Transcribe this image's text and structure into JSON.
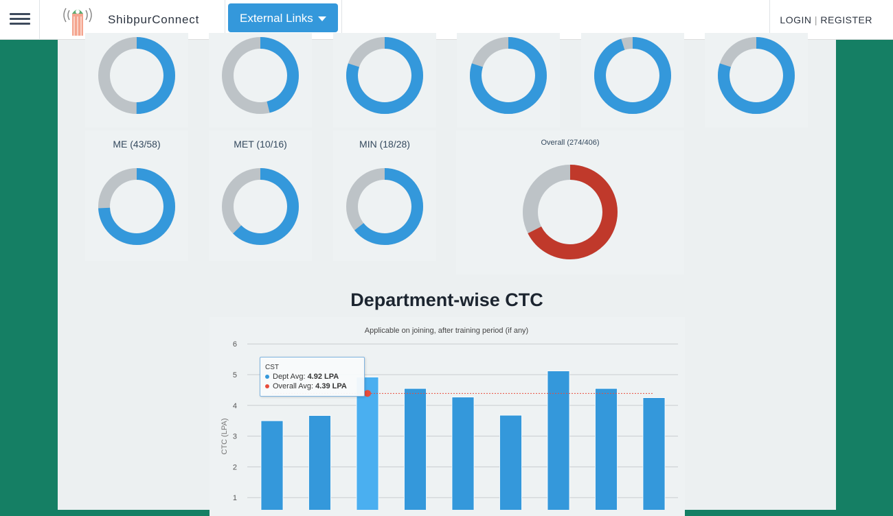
{
  "header": {
    "brand": "ShibpurConnect",
    "external_links": "External Links",
    "login": "LOGIN",
    "divider": "|",
    "register": "REGISTER"
  },
  "colors": {
    "placed": "#3498db",
    "unplaced": "#bdc3c7",
    "overall": "#c0392b",
    "green": "#157f64"
  },
  "donuts_top": [
    {
      "fraction": 0.5
    },
    {
      "fraction": 0.46
    },
    {
      "fraction": 0.8
    },
    {
      "fraction": 0.8
    },
    {
      "fraction": 0.95
    },
    {
      "fraction": 0.8
    }
  ],
  "donuts": [
    {
      "label": "ME (43/58)",
      "placed": 43,
      "total": 58
    },
    {
      "label": "MET (10/16)",
      "placed": 10,
      "total": 16
    },
    {
      "label": "MIN (18/28)",
      "placed": 18,
      "total": 28
    }
  ],
  "overall": {
    "label": "Overall (274/406)",
    "placed": 274,
    "total": 406
  },
  "section_title": "Department-wise CTC",
  "chart_data": {
    "type": "bar",
    "title": "",
    "subtitle": "Applicable on joining, after training period (if any)",
    "ylabel": "CTC (LPA)",
    "ylim": [
      0,
      6
    ],
    "yticks": [
      "1",
      "2",
      "3",
      "4",
      "5",
      "6"
    ],
    "categories": [
      "",
      "",
      "CST",
      "",
      "",
      "",
      "",
      "",
      ""
    ],
    "series": [
      {
        "name": "Dept Avg",
        "values": [
          3.5,
          3.67,
          4.92,
          4.55,
          4.27,
          3.68,
          5.12,
          4.55,
          4.25
        ]
      }
    ],
    "overall_avg": 4.39,
    "grid": true
  },
  "tooltip": {
    "title": "CST",
    "dept_label": "Dept Avg:",
    "dept_value": "4.92 LPA",
    "overall_label": "Overall Avg:",
    "overall_value": "4.39 LPA"
  }
}
